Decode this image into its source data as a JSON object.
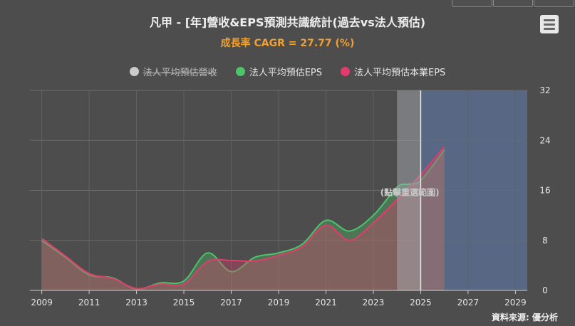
{
  "chart_data": {
    "type": "area",
    "title": "凡甲 - [年]營收&EPS預測共識統計(過去vs法人預估)",
    "subtitle": "成長率 CAGR = 27.77 (%)",
    "x_ticks": [
      "2009",
      "2011",
      "2013",
      "2015",
      "2017",
      "2019",
      "2021",
      "2023",
      "2025",
      "2027",
      "2029"
    ],
    "xlim": [
      2008.5,
      2029.5
    ],
    "y_ticks": [
      "0",
      "8",
      "16",
      "24",
      "32"
    ],
    "ylim": [
      0,
      32
    ],
    "y_axis_side": "right",
    "grid": true,
    "legend_position": "top-center",
    "band_label": "(點擊重選範圍)",
    "series": [
      {
        "name": "法人平均預估營收",
        "color": "#cccccc",
        "hidden": true,
        "x": [],
        "values": []
      },
      {
        "name": "法人平均預估EPS",
        "color": "#4cc46a",
        "hidden": false,
        "x": [
          2009,
          2010,
          2011,
          2012,
          2013,
          2014,
          2015,
          2016,
          2017,
          2018,
          2019,
          2020,
          2021,
          2022,
          2023,
          2024,
          2024.5,
          2025,
          2026
        ],
        "values": [
          8.0,
          5.3,
          2.5,
          2.0,
          0.2,
          1.2,
          1.5,
          6.0,
          3.0,
          5.3,
          6.0,
          7.4,
          11.2,
          9.5,
          12.0,
          16.5,
          17.0,
          17.6,
          22.5
        ]
      },
      {
        "name": "法人平均預估本業EPS",
        "color": "#e03c6c",
        "hidden": false,
        "x": [
          2009,
          2010,
          2011,
          2012,
          2013,
          2014,
          2015,
          2016,
          2017,
          2018,
          2019,
          2020,
          2021,
          2022,
          2023,
          2024,
          2025,
          2026
        ],
        "values": [
          8.3,
          5.5,
          2.7,
          1.9,
          0.3,
          1.0,
          1.0,
          4.6,
          4.8,
          4.7,
          5.6,
          7.0,
          10.4,
          8.0,
          10.8,
          14.5,
          18.5,
          23.0
        ]
      }
    ],
    "highlight_band": {
      "from": 2024,
      "to": 2025,
      "color": "#a8aab2"
    },
    "forecast_region": {
      "from": 2025,
      "to": 2029.5,
      "color": "#5a6a8a"
    },
    "source": "資料來源: 優分析"
  }
}
